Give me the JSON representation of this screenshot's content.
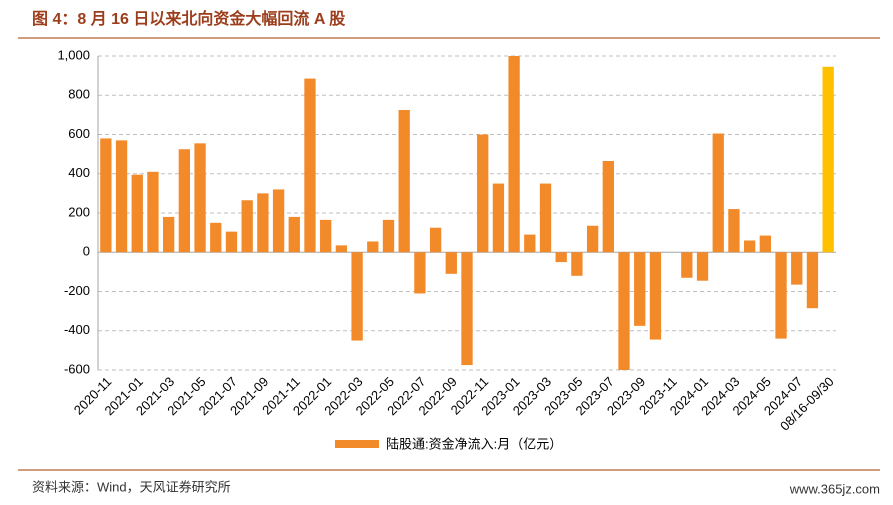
{
  "chart_data": {
    "type": "bar",
    "title": "图 4：8 月 16 日以来北向资金大幅回流 A 股",
    "source": "资料来源：Wind，天风证券研究所",
    "watermark": "www.365jz.com",
    "categories": [
      "2020-11",
      null,
      "2021-01",
      null,
      "2021-03",
      null,
      "2021-05",
      null,
      "2021-07",
      null,
      "2021-09",
      null,
      "2021-11",
      null,
      "2022-01",
      null,
      "2022-03",
      null,
      "2022-05",
      null,
      "2022-07",
      null,
      "2022-09",
      null,
      "2022-11",
      null,
      "2023-01",
      null,
      "2023-03",
      null,
      "2023-05",
      null,
      "2023-07",
      null,
      "2023-09",
      null,
      "2023-11",
      null,
      "2024-01",
      null,
      "2024-03",
      null,
      "2024-05",
      null,
      "2024-07",
      null,
      "08/16-09/30"
    ],
    "series": [
      {
        "name": "陆股通:资金净流入:月（亿元）",
        "color": "#f28a2a",
        "values": [
          580,
          570,
          395,
          410,
          180,
          525,
          555,
          150,
          105,
          265,
          300,
          320,
          180,
          885,
          165,
          35,
          -450,
          55,
          165,
          725,
          -210,
          125,
          -110,
          -575,
          600,
          350,
          1000,
          90,
          350,
          -50,
          -120,
          135,
          465,
          -600,
          -375,
          -445,
          0,
          -130,
          -145,
          605,
          220,
          60,
          85,
          -440,
          -165,
          -285,
          945
        ],
        "colors": [
          "#f28a2a",
          "#f28a2a",
          "#f28a2a",
          "#f28a2a",
          "#f28a2a",
          "#f28a2a",
          "#f28a2a",
          "#f28a2a",
          "#f28a2a",
          "#f28a2a",
          "#f28a2a",
          "#f28a2a",
          "#f28a2a",
          "#f28a2a",
          "#f28a2a",
          "#f28a2a",
          "#f28a2a",
          "#f28a2a",
          "#f28a2a",
          "#f28a2a",
          "#f28a2a",
          "#f28a2a",
          "#f28a2a",
          "#f28a2a",
          "#f28a2a",
          "#f28a2a",
          "#f28a2a",
          "#f28a2a",
          "#f28a2a",
          "#f28a2a",
          "#f28a2a",
          "#f28a2a",
          "#f28a2a",
          "#f28a2a",
          "#f28a2a",
          "#f28a2a",
          "#f28a2a",
          "#f28a2a",
          "#f28a2a",
          "#f28a2a",
          "#f28a2a",
          "#f28a2a",
          "#f28a2a",
          "#f28a2a",
          "#f28a2a",
          "#f28a2a",
          "#ffc000"
        ]
      }
    ],
    "ylim": [
      -600,
      1000
    ],
    "yticks": [
      -600,
      -400,
      -200,
      0,
      200,
      400,
      600,
      800,
      {
        "value": 1000,
        "label": "1,000"
      }
    ],
    "grid": true
  }
}
